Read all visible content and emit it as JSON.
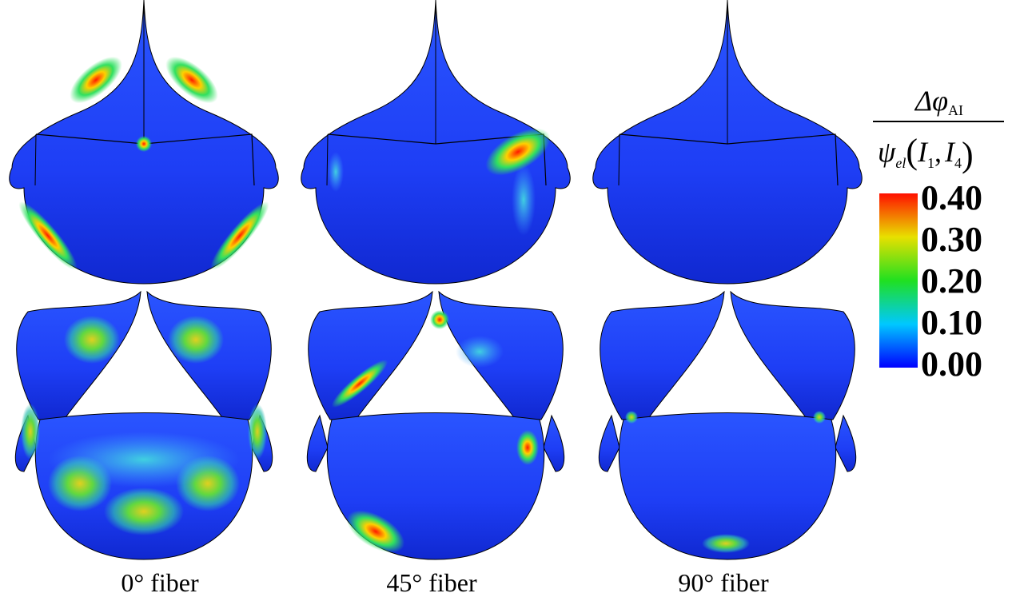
{
  "panels": [
    {
      "label": "0° fiber"
    },
    {
      "label": "45° fiber"
    },
    {
      "label": "90° fiber"
    }
  ],
  "colorbar": {
    "label": {
      "numerator": {
        "symbol": "Δφ",
        "subscript": "AI"
      },
      "denominator": {
        "symbol": "ψ",
        "subscript": "el",
        "open": "(",
        "separator": ",",
        "close": ")",
        "args": [
          {
            "symbol": "I",
            "subscript": "1"
          },
          {
            "symbol": "I",
            "subscript": "4"
          }
        ]
      }
    },
    "lim": [
      0,
      0.4
    ],
    "ticks": [
      {
        "value": 0.4,
        "label": "0.40"
      },
      {
        "value": 0.3,
        "label": "0.30"
      },
      {
        "value": 0.2,
        "label": "0.20"
      },
      {
        "value": 0.1,
        "label": "0.10"
      },
      {
        "value": 0,
        "label": "0.00"
      }
    ]
  }
}
